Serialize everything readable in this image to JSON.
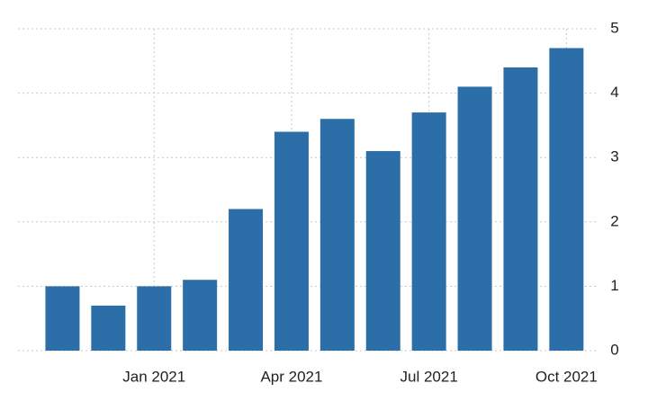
{
  "chart_data": {
    "type": "bar",
    "categories": [
      null,
      null,
      "Jan 2021",
      null,
      null,
      "Apr 2021",
      null,
      null,
      "Jul 2021",
      null,
      null,
      "Oct 2021"
    ],
    "values": [
      1.0,
      0.7,
      1.0,
      1.1,
      2.2,
      3.4,
      3.6,
      3.1,
      3.7,
      4.1,
      4.4,
      4.7
    ],
    "color": "#2b6ea8",
    "ylim": [
      0,
      5
    ],
    "yticks": [
      0,
      1,
      2,
      3,
      4,
      5
    ],
    "grid": true
  }
}
